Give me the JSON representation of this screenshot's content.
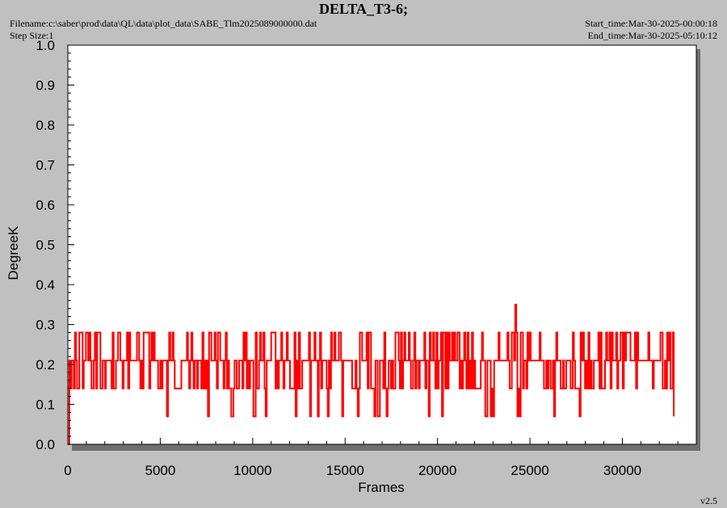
{
  "header": {
    "title": "DELTA_T3-6;",
    "filename": "Filename:c:\\saber\\prod\\data\\QL\\data\\plot_data\\SABE_Tlm2025089000000.dat",
    "step_size": "Step Size:1",
    "start_time": "Start_time:Mar-30-2025-00:00:18",
    "end_time": "End_time:Mar-30-2025-05:10:12"
  },
  "footer": {
    "version": "v2.5"
  },
  "colors": {
    "series": "#ff0000",
    "plot_bg": "#ffffff",
    "page_bg": "#c0c0c0",
    "shadow": "#6e6e6e"
  },
  "chart_data": {
    "type": "line",
    "title": "DELTA_T3-6;",
    "xlabel": "Frames",
    "ylabel": "DegreeK",
    "xlim": [
      0,
      34000
    ],
    "ylim": [
      0.0,
      1.0
    ],
    "x_ticks": [
      0,
      5000,
      10000,
      15000,
      20000,
      25000,
      30000
    ],
    "x_tick_labels": [
      "0",
      "5000",
      "10000",
      "15000",
      "20000",
      "25000",
      "30000"
    ],
    "y_ticks": [
      0.0,
      0.1,
      0.2,
      0.3,
      0.4,
      0.5,
      0.6,
      0.7,
      0.8,
      0.9,
      1.0
    ],
    "y_tick_labels": [
      "0.0",
      "0.1",
      "0.2",
      "0.3",
      "0.4",
      "0.5",
      "0.6",
      "0.7",
      "0.8",
      "0.9",
      "1.0"
    ],
    "grid": false,
    "legend": "none",
    "series": [
      {
        "description": "Noisy quantized signal, values mostly 0.21 with frequent excursions to 0.14, 0.28 and occasionally 0.07; single spike near frame 24200",
        "x_range": [
          0,
          32800
        ],
        "levels": [
          0.07,
          0.14,
          0.21,
          0.28
        ],
        "dominant_level": 0.21,
        "spike": {
          "x": 24200,
          "y": 0.35
        },
        "start_value": 0.0
      }
    ]
  }
}
